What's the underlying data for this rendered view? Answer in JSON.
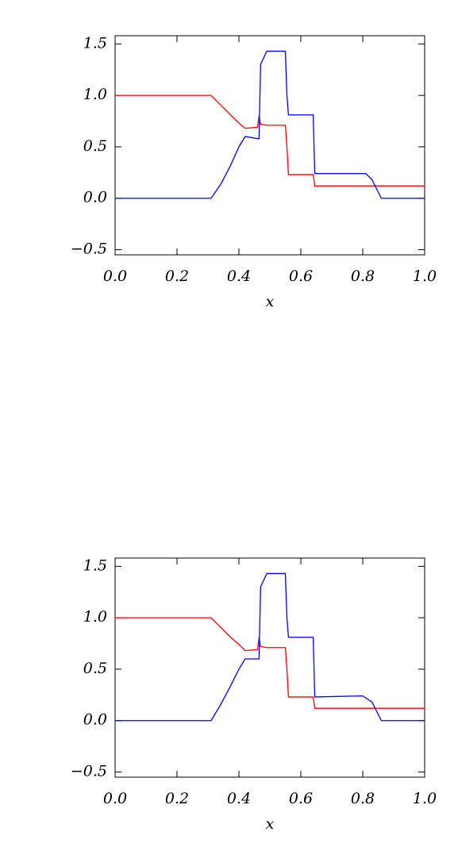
{
  "chart_data": [
    {
      "type": "line",
      "x_label": "x",
      "x": [
        0,
        0.31,
        0.34,
        0.37,
        0.4,
        0.42,
        0.46,
        0.465,
        0.47,
        0.49,
        0.55,
        0.555,
        0.56,
        0.64,
        0.645,
        0.81,
        0.83,
        0.86,
        1.0
      ],
      "series": [
        {
          "color": "#ff0000",
          "values": [
            1.0,
            1.0,
            0.91,
            0.82,
            0.73,
            0.68,
            0.69,
            0.8,
            0.72,
            0.71,
            0.71,
            0.5,
            0.23,
            0.23,
            0.12,
            0.12,
            0.12,
            0.12,
            0.12
          ]
        },
        {
          "color": "#0000ff",
          "values": [
            0,
            0,
            0.13,
            0.3,
            0.5,
            0.6,
            0.58,
            0.58,
            1.3,
            1.43,
            1.43,
            1.0,
            0.81,
            0.81,
            0.24,
            0.24,
            0.18,
            0.0,
            0.0
          ]
        }
      ],
      "xlim": [
        0,
        1
      ],
      "ylim": [
        -0.55,
        1.58
      ],
      "xticks": [
        {
          "value": 0,
          "label": "0.0"
        },
        0.2,
        0.4,
        0.6,
        0.8,
        {
          "value": 1,
          "label": "1.0"
        }
      ],
      "yticks": [
        {
          "value": -0.5,
          "label": "−0.5"
        },
        {
          "value": 0,
          "label": "0.0"
        },
        0.5,
        {
          "value": 1,
          "label": "1.0"
        },
        1.5
      ]
    },
    {
      "type": "line",
      "x_label": "x",
      "x": [
        0,
        0.31,
        0.34,
        0.37,
        0.4,
        0.42,
        0.46,
        0.465,
        0.47,
        0.49,
        0.55,
        0.555,
        0.56,
        0.64,
        0.645,
        0.8,
        0.83,
        0.86,
        1.0
      ],
      "series": [
        {
          "color": "#ff0000",
          "values": [
            1.0,
            1.0,
            0.91,
            0.82,
            0.74,
            0.68,
            0.69,
            0.81,
            0.72,
            0.71,
            0.71,
            0.5,
            0.23,
            0.23,
            0.12,
            0.12,
            0.12,
            0.12,
            0.12
          ]
        },
        {
          "color": "#0000ff",
          "values": [
            0,
            0,
            0.15,
            0.32,
            0.5,
            0.6,
            0.6,
            0.6,
            1.3,
            1.43,
            1.43,
            1.0,
            0.81,
            0.81,
            0.23,
            0.24,
            0.18,
            0.0,
            0.0
          ]
        }
      ],
      "xlim": [
        0,
        1
      ],
      "ylim": [
        -0.55,
        1.58
      ],
      "xticks": [
        {
          "value": 0,
          "label": "0.0"
        },
        0.2,
        0.4,
        0.6,
        0.8,
        {
          "value": 1,
          "label": "1.0"
        }
      ],
      "yticks": [
        {
          "value": -0.5,
          "label": "−0.5"
        },
        {
          "value": 0,
          "label": "0.0"
        },
        0.5,
        {
          "value": 1,
          "label": "1.0"
        },
        1.5
      ]
    }
  ]
}
